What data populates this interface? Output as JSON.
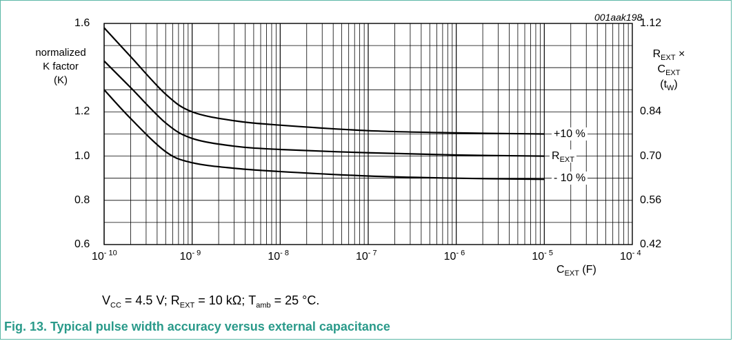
{
  "chart_data": {
    "type": "line",
    "chart_id": "001aak198",
    "x_axis": {
      "label_main": "C",
      "label_sub": "EXT",
      "label_unit": "(F)",
      "scale": "log",
      "range": [
        1e-10,
        0.0001
      ],
      "ticks": [
        {
          "value": 1e-10,
          "base": "10",
          "exp": "- 10"
        },
        {
          "value": 1e-09,
          "base": "10",
          "exp": "- 9"
        },
        {
          "value": 1e-08,
          "base": "10",
          "exp": "- 8"
        },
        {
          "value": 1e-07,
          "base": "10",
          "exp": "- 7"
        },
        {
          "value": 1e-06,
          "base": "10",
          "exp": "- 6"
        },
        {
          "value": 1e-05,
          "base": "10",
          "exp": "- 5"
        },
        {
          "value": 0.0001,
          "base": "10",
          "exp": "- 4"
        }
      ]
    },
    "y_left": {
      "label_lines": [
        "normalized",
        "K factor",
        "(K)"
      ],
      "range": [
        0.6,
        1.6
      ],
      "ticks": [
        "0.6",
        "0.8",
        "1.0",
        "1.2",
        "1.6"
      ]
    },
    "y_right": {
      "label_line1_main": "R",
      "label_line1_sub": "EXT",
      "label_line1_suffix": " ×",
      "label_line2_main": "C",
      "label_line2_sub": "EXT",
      "label_line3_main": "(t",
      "label_line3_sub": "W",
      "label_line3_suffix": ")",
      "range": [
        0.42,
        1.12
      ],
      "ticks": [
        "0.42",
        "0.56",
        "0.70",
        "0.84",
        "1.12"
      ]
    },
    "grid": true,
    "series": [
      {
        "name": "+10 %",
        "name_sub": "",
        "x": [
          1e-10,
          2e-10,
          5e-10,
          1e-09,
          3e-09,
          1e-08,
          1e-07,
          1e-06,
          1e-05
        ],
        "y": [
          1.58,
          1.45,
          1.28,
          1.2,
          1.16,
          1.14,
          1.115,
          1.105,
          1.1
        ]
      },
      {
        "name": "R",
        "name_sub": "EXT",
        "x": [
          1e-10,
          2e-10,
          5e-10,
          1e-09,
          3e-09,
          1e-08,
          1e-07,
          1e-06,
          1e-05
        ],
        "y": [
          1.43,
          1.31,
          1.15,
          1.08,
          1.045,
          1.03,
          1.015,
          1.005,
          1.0
        ]
      },
      {
        "name": "- 10 %",
        "name_sub": "",
        "x": [
          1e-10,
          2e-10,
          5e-10,
          1e-09,
          3e-09,
          1e-08,
          1e-07,
          1e-06,
          1e-05
        ],
        "y": [
          1.3,
          1.17,
          1.02,
          0.97,
          0.945,
          0.93,
          0.91,
          0.9,
          0.895
        ]
      }
    ]
  },
  "condition": {
    "vcc_label": "V",
    "vcc_sub": "CC",
    "vcc_value": " = 4.5 V; ",
    "rext_label": "R",
    "rext_sub": "EXT",
    "rext_value": " = 10 kΩ; ",
    "tamb_label": "T",
    "tamb_sub": "amb",
    "tamb_value": " = 25 °C."
  },
  "caption": "Fig. 13.  Typical pulse width accuracy versus external capacitance",
  "colors": {
    "frame": "#5bb7a6",
    "caption": "#2a9a8a",
    "ink": "#000000"
  }
}
